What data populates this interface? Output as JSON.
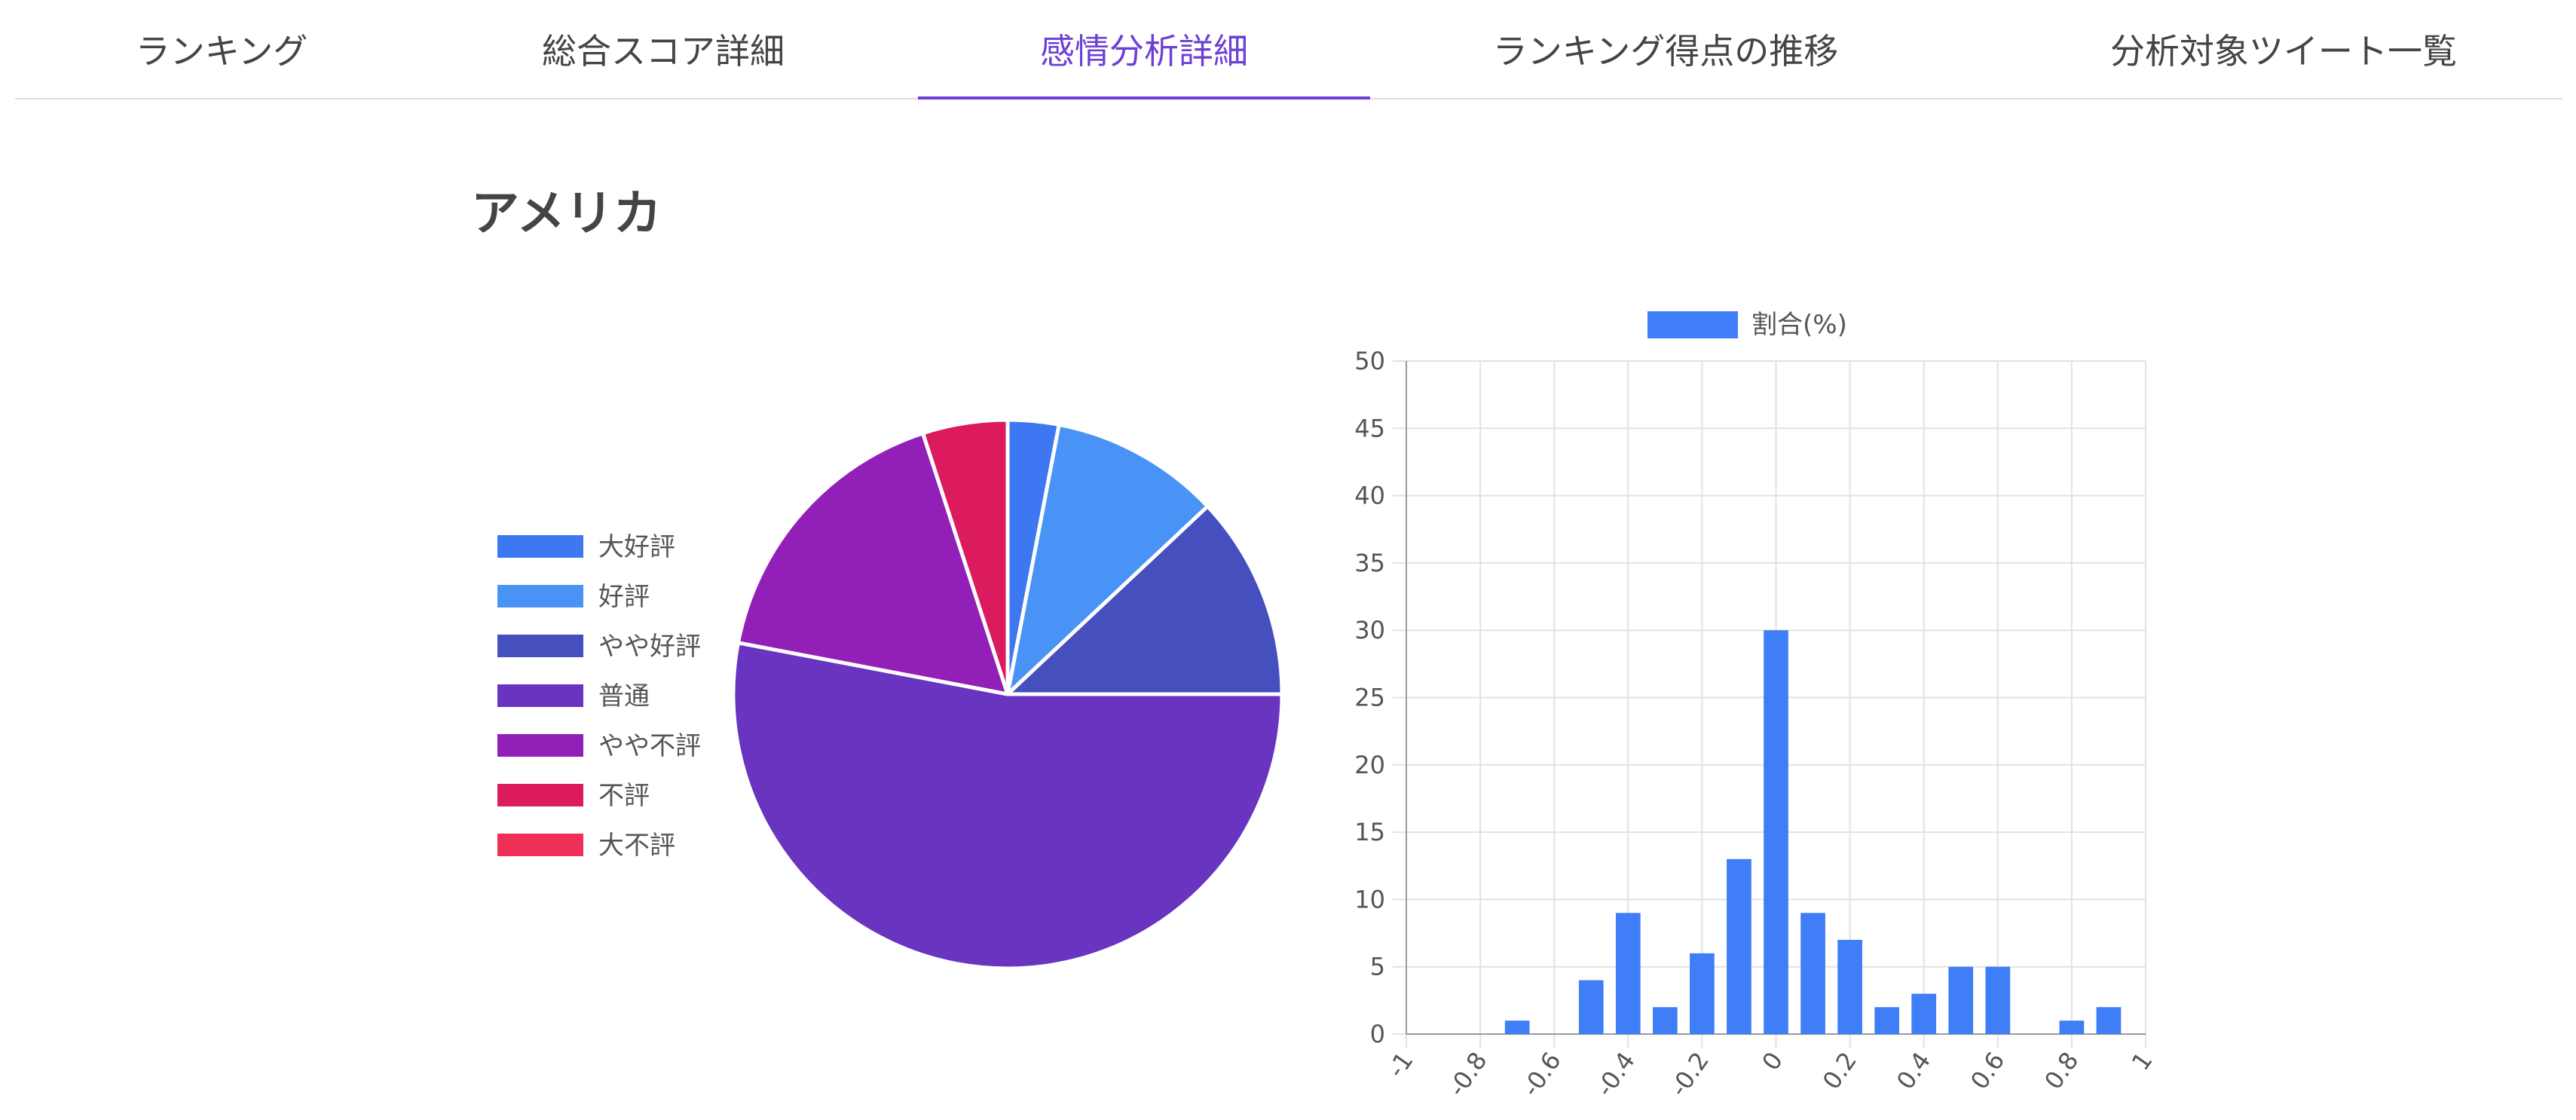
{
  "tabs": [
    {
      "label": "ランキング"
    },
    {
      "label": "総合スコア詳細"
    },
    {
      "label": "感情分析詳細",
      "active": true
    },
    {
      "label": "ランキング得点の推移"
    },
    {
      "label": "分析対象ツイート一覧"
    }
  ],
  "title": "アメリカ",
  "chart_data": [
    {
      "type": "pie",
      "legend_position": "left",
      "labels": [
        "大好評",
        "好評",
        "やや好評",
        "普通",
        "やや不評",
        "不評",
        "大不評"
      ],
      "values": [
        3,
        10,
        12,
        53,
        17,
        5,
        0
      ],
      "colors": [
        "#3d78f2",
        "#4993f7",
        "#454fbd",
        "#6834c0",
        "#9220b8",
        "#dc1b5e",
        "#ef2f55"
      ]
    },
    {
      "type": "bar",
      "legend": "割合(%)",
      "color": "#3f7ef6",
      "x_ticks": [
        "-1",
        "-0.8",
        "-0.6",
        "-0.4",
        "-0.2",
        "0",
        "0.2",
        "0.4",
        "0.6",
        "0.8",
        "1"
      ],
      "xlim": [
        -1,
        1
      ],
      "ylim": [
        0,
        50
      ],
      "y_ticks": [
        "0",
        "5",
        "10",
        "15",
        "20",
        "25",
        "30",
        "35",
        "40",
        "45",
        "50"
      ],
      "grid": true,
      "x": [
        -0.9,
        -0.8,
        -0.7,
        -0.6,
        -0.5,
        -0.4,
        -0.3,
        -0.2,
        -0.1,
        0.0,
        0.1,
        0.2,
        0.3,
        0.4,
        0.5,
        0.6,
        0.7,
        0.8,
        0.9
      ],
      "values": [
        0,
        0,
        1,
        0,
        4,
        9,
        2,
        6,
        13,
        30,
        9,
        7,
        2,
        3,
        5,
        5,
        0,
        1,
        2
      ]
    }
  ]
}
